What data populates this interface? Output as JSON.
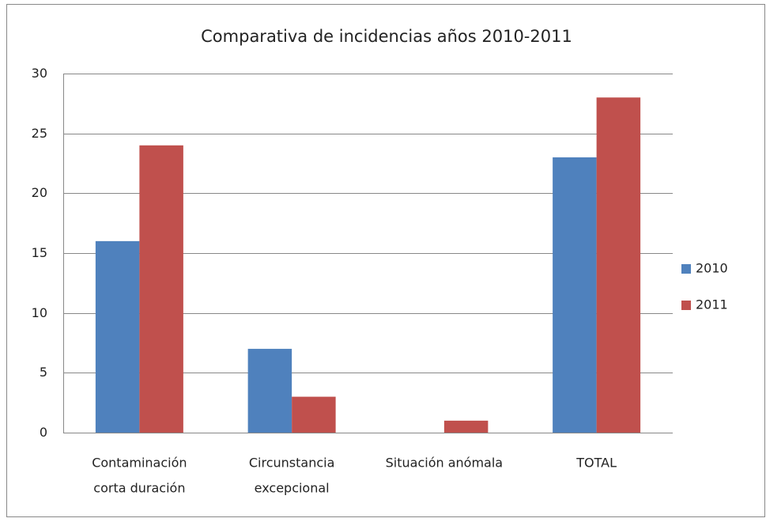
{
  "chart_data": {
    "type": "bar",
    "title": "Comparativa de incidencias años 2010-2011",
    "categories": [
      [
        "Contaminación",
        "corta duración"
      ],
      [
        "Circunstancia",
        "excepcional"
      ],
      [
        "Situación anómala"
      ],
      [
        "TOTAL"
      ]
    ],
    "series": [
      {
        "name": "2010",
        "color": "#4f81bd",
        "values": [
          16,
          7,
          0,
          23
        ]
      },
      {
        "name": "2011",
        "color": "#c0504d",
        "values": [
          24,
          3,
          1,
          28
        ]
      }
    ],
    "ylim": [
      0,
      30
    ],
    "yticks": [
      0,
      5,
      10,
      15,
      20,
      25,
      30
    ],
    "grid": true,
    "legend": "right"
  }
}
